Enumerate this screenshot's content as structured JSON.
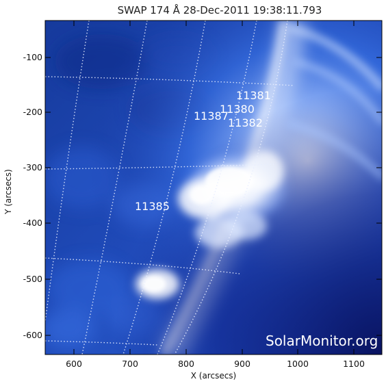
{
  "image": {
    "title": "SWAP 174 Å 28-Dec-2011 19:38:11.793",
    "watermark": "SolarMonitor.org",
    "colors": {
      "sky_dark": "#10288a",
      "sky_mid": "#2e62d8",
      "bright": "#ffffff",
      "grid": "#e8eeff"
    }
  },
  "axes": {
    "xlabel": "X (arcsecs)",
    "ylabel": "Y (arcsecs)",
    "x_ticks": [
      "600",
      "700",
      "800",
      "900",
      "1000",
      "1100"
    ],
    "y_ticks": [
      "-100",
      "-200",
      "-300",
      "-400",
      "-500",
      "-600"
    ]
  },
  "active_regions": [
    {
      "id": "11381"
    },
    {
      "id": "11380"
    },
    {
      "id": "11387"
    },
    {
      "id": "11382"
    },
    {
      "id": "11385"
    }
  ]
}
